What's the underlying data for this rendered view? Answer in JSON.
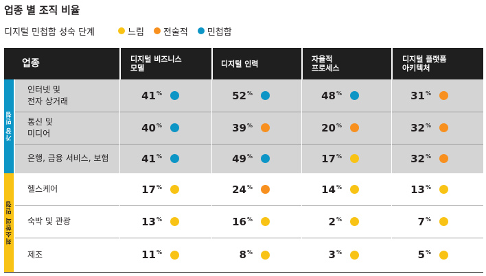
{
  "title": "업종 별 조직 비율",
  "legend": {
    "label": "디지털 민첩함 성숙 단계",
    "items": [
      {
        "key": "slow",
        "label": "느림",
        "color": "#f9c315"
      },
      {
        "key": "tech",
        "label": "전술적",
        "color": "#f7901e"
      },
      {
        "key": "agile",
        "label": "민첩함",
        "color": "#0d95c6"
      }
    ]
  },
  "header": {
    "industry": "업종",
    "columns": [
      [
        "디지털 비즈니스",
        "모델"
      ],
      [
        "디지털 인력",
        ""
      ],
      [
        "자율적",
        "프로세스"
      ],
      [
        "디지털 플랫폼",
        "아키텍처"
      ]
    ]
  },
  "groups": [
    {
      "label": "가장 민첩",
      "color": "#0d95c6"
    },
    {
      "label": "최소한의 민첩",
      "color": "#f9c315"
    }
  ],
  "pct_symbol": "%",
  "rows": [
    {
      "industry": [
        "인터넷 및",
        "전자 상거래"
      ],
      "cells": [
        {
          "v": "41",
          "c": "agile"
        },
        {
          "v": "52",
          "c": "agile"
        },
        {
          "v": "48",
          "c": "agile"
        },
        {
          "v": "31",
          "c": "tech"
        }
      ]
    },
    {
      "industry": [
        "통신 및",
        "미디어"
      ],
      "cells": [
        {
          "v": "40",
          "c": "agile"
        },
        {
          "v": "39",
          "c": "tech"
        },
        {
          "v": "20",
          "c": "tech"
        },
        {
          "v": "32",
          "c": "tech"
        }
      ]
    },
    {
      "industry": [
        "은행, 금융 서비스, 보험",
        ""
      ],
      "cells": [
        {
          "v": "41",
          "c": "agile"
        },
        {
          "v": "49",
          "c": "agile"
        },
        {
          "v": "17",
          "c": "slow"
        },
        {
          "v": "32",
          "c": "tech"
        }
      ]
    },
    {
      "industry": [
        "헬스케어",
        ""
      ],
      "cells": [
        {
          "v": "17",
          "c": "slow"
        },
        {
          "v": "24",
          "c": "tech"
        },
        {
          "v": "14",
          "c": "slow"
        },
        {
          "v": "13",
          "c": "slow"
        }
      ]
    },
    {
      "industry": [
        "숙박 및 관광",
        ""
      ],
      "cells": [
        {
          "v": "13",
          "c": "slow"
        },
        {
          "v": "16",
          "c": "slow"
        },
        {
          "v": "2",
          "c": "slow"
        },
        {
          "v": "7",
          "c": "slow"
        }
      ]
    },
    {
      "industry": [
        "제조",
        ""
      ],
      "cells": [
        {
          "v": "11",
          "c": "slow"
        },
        {
          "v": "8",
          "c": "slow"
        },
        {
          "v": "3",
          "c": "slow"
        },
        {
          "v": "5",
          "c": "slow"
        }
      ]
    }
  ]
}
